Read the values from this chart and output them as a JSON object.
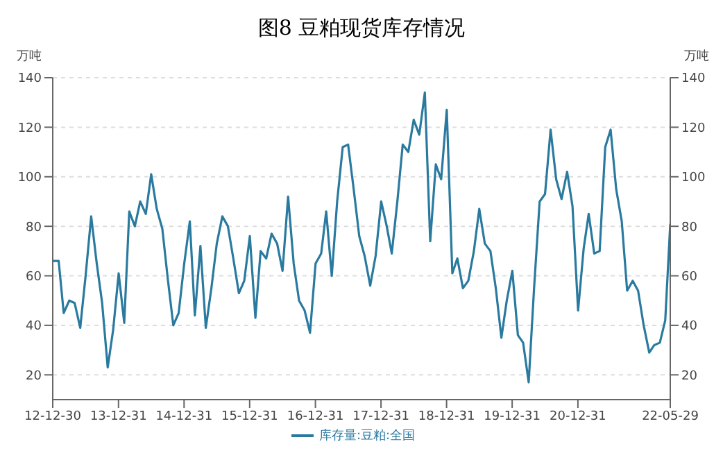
{
  "chart_data": {
    "type": "line",
    "title": "图8 豆粕现货库存情况",
    "ylabel": "万吨",
    "y2label": "万吨",
    "x": [
      "2012-12-30",
      "2013-01",
      "2013-02",
      "2013-03",
      "2013-04",
      "2013-05",
      "2013-06",
      "2013-07",
      "2013-08",
      "2013-09",
      "2013-10",
      "2013-11",
      "2013-12",
      "2014-01",
      "2014-02",
      "2014-03",
      "2014-04",
      "2014-05",
      "2014-06",
      "2014-07",
      "2014-08",
      "2014-09",
      "2014-10",
      "2014-11",
      "2014-12",
      "2015-01",
      "2015-02",
      "2015-03",
      "2015-04",
      "2015-05",
      "2015-06",
      "2015-07",
      "2015-08",
      "2015-09",
      "2015-10",
      "2015-11",
      "2015-12",
      "2016-01",
      "2016-02",
      "2016-03",
      "2016-04",
      "2016-05",
      "2016-06",
      "2016-07",
      "2016-08",
      "2016-09",
      "2016-10",
      "2016-11",
      "2016-12",
      "2017-01",
      "2017-02",
      "2017-03",
      "2017-04",
      "2017-05",
      "2017-06",
      "2017-07",
      "2017-08",
      "2017-09",
      "2017-10",
      "2017-11",
      "2017-12",
      "2018-01",
      "2018-02",
      "2018-03",
      "2018-04",
      "2018-05",
      "2018-06",
      "2018-07",
      "2018-08",
      "2018-09",
      "2018-10",
      "2018-11",
      "2018-12",
      "2019-01",
      "2019-02",
      "2019-03",
      "2019-04",
      "2019-05",
      "2019-06",
      "2019-07",
      "2019-08",
      "2019-09",
      "2019-10",
      "2019-11",
      "2019-12",
      "2020-01",
      "2020-02",
      "2020-03",
      "2020-04",
      "2020-05",
      "2020-06",
      "2020-07",
      "2020-08",
      "2020-09",
      "2020-10",
      "2020-11",
      "2020-12",
      "2021-01",
      "2021-02",
      "2021-03",
      "2021-04",
      "2021-05",
      "2021-06",
      "2021-07",
      "2021-08",
      "2021-09",
      "2021-10",
      "2021-11",
      "2021-12",
      "2022-01",
      "2022-02",
      "2022-03",
      "2022-04",
      "2022-05",
      "2022-05-29"
    ],
    "series": [
      {
        "name": "库存量:豆粕:全国",
        "color": "#2a7aa0",
        "values": [
          66,
          66,
          66,
          45,
          50,
          49,
          39,
          60,
          84,
          65,
          49,
          23,
          38,
          61,
          41,
          86,
          80,
          90,
          85,
          101,
          87,
          79,
          59,
          40,
          45,
          65,
          82,
          44,
          72,
          39,
          55,
          73,
          84,
          80,
          67,
          53,
          58,
          76,
          43,
          70,
          67,
          77,
          73,
          62,
          92,
          65,
          50,
          46,
          37,
          65,
          69,
          86,
          60,
          90,
          112,
          113,
          95,
          76,
          68,
          56,
          68,
          90,
          80,
          69,
          90,
          113,
          110,
          123,
          117,
          134,
          74,
          105,
          99,
          127,
          61,
          67,
          55,
          58,
          70,
          87,
          73,
          70,
          55,
          35,
          50,
          62,
          36,
          33,
          17,
          55,
          90,
          93,
          119,
          99,
          91,
          102,
          88,
          46,
          71,
          85,
          69,
          70,
          112,
          119,
          95,
          82,
          54,
          58,
          54,
          40,
          29,
          32,
          33,
          42,
          81
        ]
      }
    ],
    "xlim": [
      "2012-12-30",
      "2022-05-29"
    ],
    "xticks": [
      {
        "value": "2012-12-30",
        "label": "12-12-30"
      },
      {
        "value": "2013-12-31",
        "label": "13-12-31"
      },
      {
        "value": "2014-12-31",
        "label": "14-12-31"
      },
      {
        "value": "2015-12-31",
        "label": "15-12-31"
      },
      {
        "value": "2016-12-31",
        "label": "16-12-31"
      },
      {
        "value": "2017-12-31",
        "label": "17-12-31"
      },
      {
        "value": "2018-12-31",
        "label": "18-12-31"
      },
      {
        "value": "2019-12-31",
        "label": "19-12-31"
      },
      {
        "value": "2020-12-31",
        "label": "20-12-31"
      },
      {
        "value": "2022-05-29",
        "label": "22-05-29"
      }
    ],
    "ylim": [
      10,
      140
    ],
    "yticks": [
      20,
      40,
      60,
      80,
      100,
      120,
      140
    ],
    "y2lim": [
      10,
      140
    ],
    "y2ticks": [
      20,
      40,
      60,
      80,
      100,
      120,
      140
    ],
    "grid": "y",
    "legend": "bottom",
    "marker": "none",
    "line_style": "solid"
  }
}
